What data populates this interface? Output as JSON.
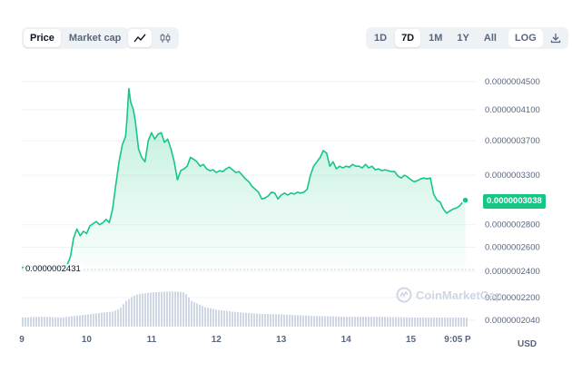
{
  "toolbar": {
    "view_tabs": [
      {
        "label": "Price",
        "active": true
      },
      {
        "label": "Market cap",
        "active": false
      }
    ],
    "chart_style": [
      {
        "icon": "line-chart-icon",
        "active": true
      },
      {
        "icon": "candlestick-icon",
        "active": false
      }
    ],
    "ranges": [
      {
        "label": "1D",
        "active": false
      },
      {
        "label": "7D",
        "active": true
      },
      {
        "label": "1M",
        "active": false
      },
      {
        "label": "1Y",
        "active": false
      },
      {
        "label": "All",
        "active": false
      }
    ],
    "log_label": "LOG",
    "download_icon": "download-icon"
  },
  "current_price": "0.0000003038",
  "low_price": "0.0000002431",
  "currency": "USD",
  "watermark": "CoinMarketCap",
  "colors": {
    "line": "#16c784",
    "volume": "#cfd6e4",
    "grid": "#eff2f5"
  },
  "chart_data": {
    "type": "area",
    "title": "",
    "xlabel": "",
    "ylabel": "",
    "y_scale": "log",
    "grid": true,
    "y_ticks": [
      {
        "value": 4.5e-07,
        "label": "0.0000004500"
      },
      {
        "value": 4.1e-07,
        "label": "0.0000004100"
      },
      {
        "value": 3.7e-07,
        "label": "0.0000003700"
      },
      {
        "value": 3.3e-07,
        "label": "0.0000003300"
      },
      {
        "value": 2.8e-07,
        "label": "0.0000002800"
      },
      {
        "value": 2.6e-07,
        "label": "0.0000002600"
      },
      {
        "value": 2.4e-07,
        "label": "0.0000002400"
      },
      {
        "value": 2.2e-07,
        "label": "0.0000002200"
      },
      {
        "value": 2.04e-07,
        "label": "0.0000002040"
      }
    ],
    "x_ticks": [
      "9",
      "10",
      "11",
      "12",
      "13",
      "14",
      "15",
      "9:05 P"
    ],
    "x_range": [
      9,
      16.0
    ],
    "series": [
      {
        "values": [
          [
            9.0,
            2.43e-07
          ],
          [
            9.3,
            2.44e-07
          ],
          [
            9.5,
            2.43e-07
          ],
          [
            9.7,
            2.45e-07
          ],
          [
            9.75,
            2.52e-07
          ],
          [
            9.8,
            2.68e-07
          ],
          [
            9.85,
            2.76e-07
          ],
          [
            9.9,
            2.7e-07
          ],
          [
            9.95,
            2.74e-07
          ],
          [
            10.0,
            2.72e-07
          ],
          [
            10.05,
            2.79e-07
          ],
          [
            10.1,
            2.81e-07
          ],
          [
            10.15,
            2.83e-07
          ],
          [
            10.2,
            2.8e-07
          ],
          [
            10.25,
            2.82e-07
          ],
          [
            10.3,
            2.85e-07
          ],
          [
            10.35,
            2.82e-07
          ],
          [
            10.4,
            2.95e-07
          ],
          [
            10.45,
            3.2e-07
          ],
          [
            10.5,
            3.45e-07
          ],
          [
            10.55,
            3.65e-07
          ],
          [
            10.6,
            3.75e-07
          ],
          [
            10.62,
            3.95e-07
          ],
          [
            10.65,
            4.4e-07
          ],
          [
            10.68,
            4.2e-07
          ],
          [
            10.72,
            4.1e-07
          ],
          [
            10.75,
            3.95e-07
          ],
          [
            10.8,
            3.6e-07
          ],
          [
            10.85,
            3.5e-07
          ],
          [
            10.9,
            3.45e-07
          ],
          [
            10.95,
            3.7e-07
          ],
          [
            11.0,
            3.8e-07
          ],
          [
            11.05,
            3.72e-07
          ],
          [
            11.1,
            3.78e-07
          ],
          [
            11.15,
            3.8e-07
          ],
          [
            11.2,
            3.68e-07
          ],
          [
            11.25,
            3.72e-07
          ],
          [
            11.3,
            3.6e-07
          ],
          [
            11.35,
            3.45e-07
          ],
          [
            11.4,
            3.25e-07
          ],
          [
            11.45,
            3.35e-07
          ],
          [
            11.5,
            3.37e-07
          ],
          [
            11.55,
            3.4e-07
          ],
          [
            11.6,
            3.5e-07
          ],
          [
            11.65,
            3.48e-07
          ],
          [
            11.7,
            3.45e-07
          ],
          [
            11.75,
            3.4e-07
          ],
          [
            11.8,
            3.42e-07
          ],
          [
            11.85,
            3.37e-07
          ],
          [
            11.9,
            3.35e-07
          ],
          [
            11.95,
            3.36e-07
          ],
          [
            12.0,
            3.33e-07
          ],
          [
            12.05,
            3.35e-07
          ],
          [
            12.1,
            3.34e-07
          ],
          [
            12.15,
            3.37e-07
          ],
          [
            12.2,
            3.39e-07
          ],
          [
            12.25,
            3.36e-07
          ],
          [
            12.3,
            3.33e-07
          ],
          [
            12.35,
            3.34e-07
          ],
          [
            12.4,
            3.3e-07
          ],
          [
            12.45,
            3.26e-07
          ],
          [
            12.5,
            3.23e-07
          ],
          [
            12.55,
            3.18e-07
          ],
          [
            12.6,
            3.15e-07
          ],
          [
            12.65,
            3.12e-07
          ],
          [
            12.7,
            3.05e-07
          ],
          [
            12.75,
            3.06e-07
          ],
          [
            12.8,
            3.08e-07
          ],
          [
            12.85,
            3.12e-07
          ],
          [
            12.9,
            3.11e-07
          ],
          [
            12.95,
            3.05e-07
          ],
          [
            13.0,
            3.09e-07
          ],
          [
            13.05,
            3.11e-07
          ],
          [
            13.1,
            3.09e-07
          ],
          [
            13.15,
            3.11e-07
          ],
          [
            13.2,
            3.1e-07
          ],
          [
            13.25,
            3.12e-07
          ],
          [
            13.3,
            3.11e-07
          ],
          [
            13.35,
            3.12e-07
          ],
          [
            13.4,
            3.15e-07
          ],
          [
            13.45,
            3.3e-07
          ],
          [
            13.5,
            3.4e-07
          ],
          [
            13.55,
            3.45e-07
          ],
          [
            13.6,
            3.5e-07
          ],
          [
            13.65,
            3.58e-07
          ],
          [
            13.7,
            3.55e-07
          ],
          [
            13.75,
            3.4e-07
          ],
          [
            13.8,
            3.45e-07
          ],
          [
            13.85,
            3.37e-07
          ],
          [
            13.9,
            3.4e-07
          ],
          [
            13.95,
            3.38e-07
          ],
          [
            14.0,
            3.4e-07
          ],
          [
            14.05,
            3.39e-07
          ],
          [
            14.1,
            3.42e-07
          ],
          [
            14.15,
            3.4e-07
          ],
          [
            14.2,
            3.4e-07
          ],
          [
            14.25,
            3.38e-07
          ],
          [
            14.3,
            3.42e-07
          ],
          [
            14.35,
            3.38e-07
          ],
          [
            14.4,
            3.4e-07
          ],
          [
            14.45,
            3.36e-07
          ],
          [
            14.5,
            3.37e-07
          ],
          [
            14.55,
            3.35e-07
          ],
          [
            14.6,
            3.36e-07
          ],
          [
            14.65,
            3.35e-07
          ],
          [
            14.7,
            3.34e-07
          ],
          [
            14.75,
            3.34e-07
          ],
          [
            14.8,
            3.29e-07
          ],
          [
            14.85,
            3.27e-07
          ],
          [
            14.9,
            3.3e-07
          ],
          [
            14.95,
            3.28e-07
          ],
          [
            15.0,
            3.25e-07
          ],
          [
            15.05,
            3.23e-07
          ],
          [
            15.1,
            3.24e-07
          ],
          [
            15.15,
            3.26e-07
          ],
          [
            15.2,
            3.27e-07
          ],
          [
            15.25,
            3.26e-07
          ],
          [
            15.3,
            3.27e-07
          ],
          [
            15.35,
            3.1e-07
          ],
          [
            15.4,
            3.04e-07
          ],
          [
            15.45,
            3.02e-07
          ],
          [
            15.5,
            2.95e-07
          ],
          [
            15.55,
            2.91e-07
          ],
          [
            15.6,
            2.93e-07
          ],
          [
            15.65,
            2.95e-07
          ],
          [
            15.7,
            2.96e-07
          ],
          [
            15.75,
            2.98e-07
          ],
          [
            15.8,
            3.02e-07
          ],
          [
            15.84,
            3.038e-07
          ]
        ]
      }
    ],
    "volume": [
      [
        9.0,
        12
      ],
      [
        9.3,
        13
      ],
      [
        9.6,
        12
      ],
      [
        9.8,
        14
      ],
      [
        10.0,
        16
      ],
      [
        10.2,
        18
      ],
      [
        10.4,
        20
      ],
      [
        10.5,
        24
      ],
      [
        10.6,
        34
      ],
      [
        10.7,
        40
      ],
      [
        10.8,
        43
      ],
      [
        11.0,
        45
      ],
      [
        11.2,
        46
      ],
      [
        11.4,
        46
      ],
      [
        11.5,
        45
      ],
      [
        11.6,
        34
      ],
      [
        11.8,
        26
      ],
      [
        12.0,
        22
      ],
      [
        12.3,
        19
      ],
      [
        12.6,
        17
      ],
      [
        13.0,
        16
      ],
      [
        13.5,
        14
      ],
      [
        14.0,
        13
      ],
      [
        14.5,
        13
      ],
      [
        15.0,
        12
      ],
      [
        15.5,
        12
      ],
      [
        15.85,
        12
      ]
    ]
  }
}
